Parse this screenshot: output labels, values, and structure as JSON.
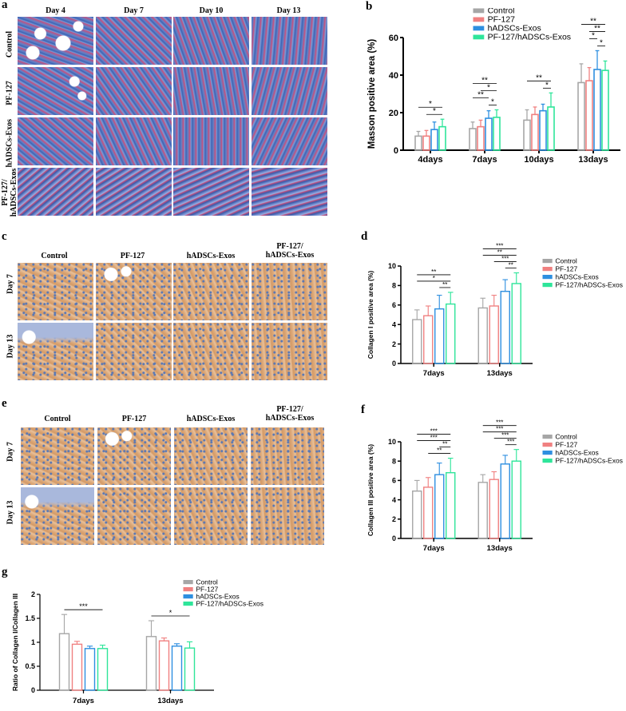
{
  "panel_letters": [
    "a",
    "b",
    "c",
    "d",
    "e",
    "f",
    "g"
  ],
  "colors": {
    "control": "#a6a6a6",
    "pf127": "#f08080",
    "hadscs": "#2e8fe0",
    "combo": "#2ee59a",
    "masson_blue": "#3f63b4",
    "masson_red": "#c4507e",
    "dab_brown": "#dca878",
    "hema_blue": "#5a78b4"
  },
  "panel_a": {
    "columns": [
      "Day 4",
      "Day 7",
      "Day 10",
      "Day 13"
    ],
    "rows": [
      "Control",
      "PF-127",
      "hADSCs-Exos",
      "PF-127/\nhADSCs-Exos"
    ]
  },
  "panel_c": {
    "columns": [
      "Control",
      "PF-127",
      "hADSCs-Exos",
      "PF-127/\nhADSCs-Exos"
    ],
    "rows": [
      "Day 7",
      "Day 13"
    ]
  },
  "panel_e": {
    "columns": [
      "Control",
      "PF-127",
      "hADSCs-Exos",
      "PF-127/\nhADSCs-Exos"
    ],
    "rows": [
      "Day 7",
      "Day 13"
    ]
  },
  "chart_data": [
    {
      "id": "b",
      "type": "bar",
      "ylabel": "Masson positive area (%)",
      "xlabel": "",
      "ylim": [
        0,
        60
      ],
      "yticks": [
        0,
        20,
        40,
        60
      ],
      "categories": [
        "4days",
        "7days",
        "10days",
        "13days"
      ],
      "legend": "top-right",
      "series": [
        {
          "name": "Control",
          "values": [
            7.5,
            11.5,
            16,
            36
          ],
          "errors": [
            2.5,
            3.5,
            5.5,
            10
          ]
        },
        {
          "name": "PF-127",
          "values": [
            7.5,
            12.5,
            19,
            37
          ],
          "errors": [
            3,
            3.5,
            4,
            7
          ]
        },
        {
          "name": "hADSCs-Exos",
          "values": [
            11,
            17,
            21,
            43
          ],
          "errors": [
            4,
            4,
            3.5,
            10
          ]
        },
        {
          "name": "PF-127/hADSCs-Exos",
          "values": [
            12.5,
            17.5,
            23,
            42.5
          ],
          "errors": [
            4,
            4,
            7.5,
            5
          ]
        }
      ],
      "sig": [
        {
          "cat": 0,
          "from": 1,
          "to": 3,
          "label": "*"
        },
        {
          "cat": 0,
          "from": 0,
          "to": 3,
          "label": "*"
        },
        {
          "cat": 1,
          "from": 2,
          "to": 3,
          "label": "*"
        },
        {
          "cat": 1,
          "from": 0,
          "to": 2,
          "label": "**"
        },
        {
          "cat": 1,
          "from": 1,
          "to": 3,
          "label": "*"
        },
        {
          "cat": 1,
          "from": 0,
          "to": 3,
          "label": "**"
        },
        {
          "cat": 2,
          "from": 2,
          "to": 3,
          "label": "*"
        },
        {
          "cat": 2,
          "from": 0,
          "to": 3,
          "label": "**"
        },
        {
          "cat": 3,
          "from": 2,
          "to": 3,
          "label": "*"
        },
        {
          "cat": 3,
          "from": 1,
          "to": 2,
          "label": "*"
        },
        {
          "cat": 3,
          "from": 1,
          "to": 3,
          "label": "**"
        },
        {
          "cat": 3,
          "from": 0,
          "to": 3,
          "label": "**"
        }
      ]
    },
    {
      "id": "d",
      "type": "bar",
      "ylabel": "Collagen I positive area (%)",
      "xlabel": "",
      "ylim": [
        0,
        10
      ],
      "yticks": [
        0,
        2,
        4,
        6,
        8,
        10
      ],
      "categories": [
        "7days",
        "13days"
      ],
      "legend": "right",
      "series": [
        {
          "name": "Control",
          "values": [
            4.5,
            5.7
          ],
          "errors": [
            1.0,
            1.0
          ]
        },
        {
          "name": "PF-127",
          "values": [
            4.9,
            5.9
          ],
          "errors": [
            1.0,
            1.1
          ]
        },
        {
          "name": "hADSCs-Exos",
          "values": [
            5.6,
            7.4
          ],
          "errors": [
            1.4,
            1.2
          ]
        },
        {
          "name": "PF-127/hADSCs-Exos",
          "values": [
            6.1,
            8.2
          ],
          "errors": [
            1.2,
            1.1
          ]
        }
      ],
      "sig": [
        {
          "cat": 0,
          "from": 2,
          "to": 3,
          "label": "**"
        },
        {
          "cat": 0,
          "from": 0,
          "to": 3,
          "label": "*"
        },
        {
          "cat": 0,
          "from": 0,
          "to": 3,
          "label": "**"
        },
        {
          "cat": 1,
          "from": 2,
          "to": 3,
          "label": "**"
        },
        {
          "cat": 1,
          "from": 1,
          "to": 3,
          "label": "***"
        },
        {
          "cat": 1,
          "from": 0,
          "to": 3,
          "label": "**"
        },
        {
          "cat": 1,
          "from": 0,
          "to": 3,
          "label": "***"
        }
      ]
    },
    {
      "id": "f",
      "type": "bar",
      "ylabel": "Collagen III positive area (%)",
      "xlabel": "",
      "ylim": [
        0,
        10
      ],
      "yticks": [
        0,
        2,
        4,
        6,
        8,
        10
      ],
      "categories": [
        "7days",
        "13days"
      ],
      "legend": "right",
      "series": [
        {
          "name": "Control",
          "values": [
            4.9,
            5.8
          ],
          "errors": [
            1.1,
            0.8
          ]
        },
        {
          "name": "PF-127",
          "values": [
            5.3,
            6.1
          ],
          "errors": [
            1.0,
            0.8
          ]
        },
        {
          "name": "hADSCs-Exos",
          "values": [
            6.6,
            7.7
          ],
          "errors": [
            1.2,
            0.9
          ]
        },
        {
          "name": "PF-127/hADSCs-Exos",
          "values": [
            6.8,
            8.0
          ],
          "errors": [
            1.5,
            1.2
          ]
        }
      ],
      "sig": [
        {
          "cat": 0,
          "from": 1,
          "to": 3,
          "label": "**"
        },
        {
          "cat": 0,
          "from": 2,
          "to": 3,
          "label": "**"
        },
        {
          "cat": 0,
          "from": 0,
          "to": 3,
          "label": "***"
        },
        {
          "cat": 0,
          "from": 0,
          "to": 3,
          "label": "***"
        },
        {
          "cat": 1,
          "from": 2,
          "to": 3,
          "label": "***"
        },
        {
          "cat": 1,
          "from": 1,
          "to": 3,
          "label": "***"
        },
        {
          "cat": 1,
          "from": 0,
          "to": 3,
          "label": "***"
        },
        {
          "cat": 1,
          "from": 0,
          "to": 3,
          "label": "***"
        }
      ]
    },
    {
      "id": "g",
      "type": "bar",
      "ylabel": "Ratio of Collagen I/Collagen III",
      "xlabel": "",
      "ylim": [
        0,
        2.0
      ],
      "yticks": [
        0.0,
        0.5,
        1.0,
        1.5,
        2.0
      ],
      "categories": [
        "7days",
        "13days"
      ],
      "legend": "top-right",
      "series": [
        {
          "name": "Control",
          "values": [
            1.18,
            1.12
          ],
          "errors": [
            0.4,
            0.33
          ]
        },
        {
          "name": "PF-127",
          "values": [
            0.96,
            1.03
          ],
          "errors": [
            0.06,
            0.06
          ]
        },
        {
          "name": "hADSCs-Exos",
          "values": [
            0.87,
            0.92
          ],
          "errors": [
            0.05,
            0.05
          ]
        },
        {
          "name": "PF-127/hADSCs-Exos",
          "values": [
            0.87,
            0.88
          ],
          "errors": [
            0.07,
            0.13
          ]
        }
      ],
      "sig": [
        {
          "cat": 0,
          "from": 0,
          "to": 3,
          "label": "***"
        },
        {
          "cat": 1,
          "from": 0,
          "to": 3,
          "label": "*"
        }
      ]
    }
  ]
}
